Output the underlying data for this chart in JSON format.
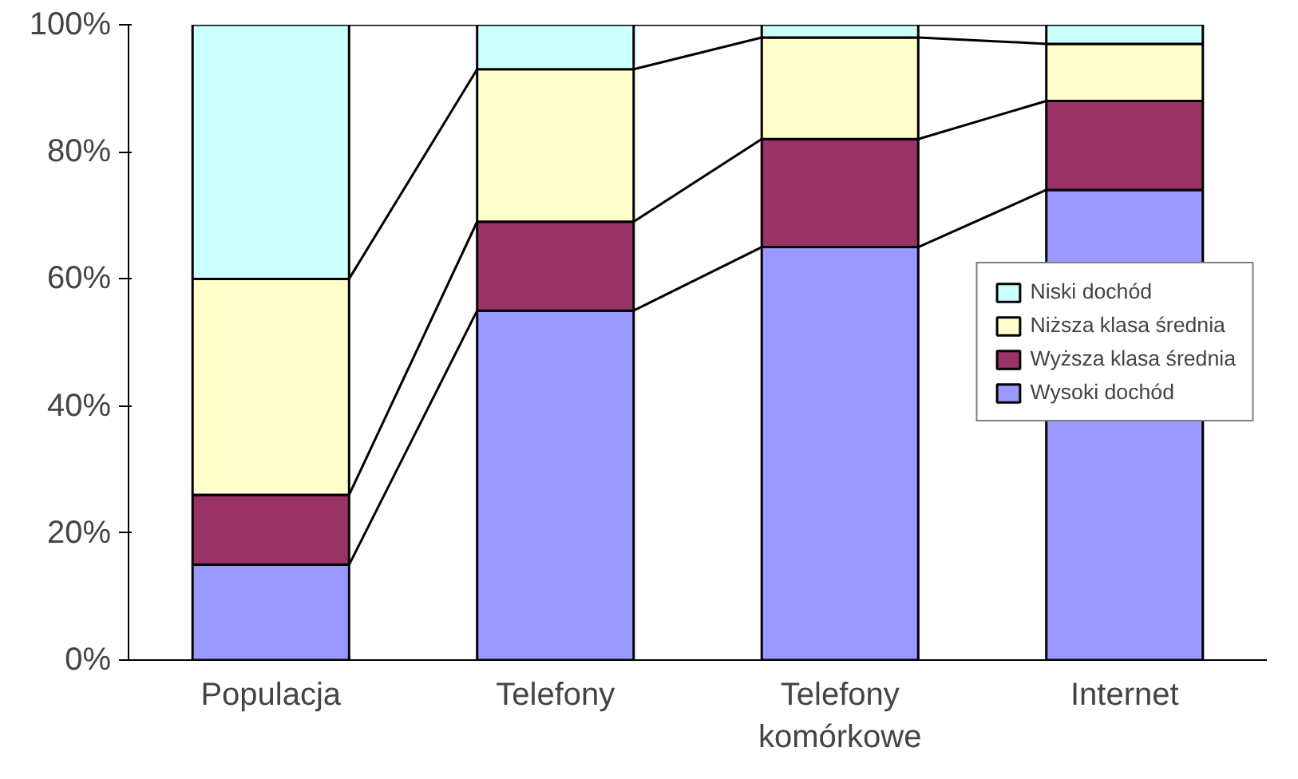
{
  "chart_data": {
    "type": "bar",
    "stacked": true,
    "categories": [
      "Populacja",
      "Telefony",
      "Telefony komórkowe",
      "Internet"
    ],
    "series": [
      {
        "name": "Wysoki dochód",
        "color": "#9999ff",
        "values": [
          15,
          55,
          65,
          74
        ]
      },
      {
        "name": "Wyższa klasa średnia",
        "color": "#993366",
        "values": [
          11,
          14,
          17,
          14
        ]
      },
      {
        "name": "Niższa klasa średnia",
        "color": "#ffffcc",
        "values": [
          34,
          24,
          16,
          9
        ]
      },
      {
        "name": "Niski dochód",
        "color": "#ccffff",
        "values": [
          40,
          7,
          2,
          3
        ]
      }
    ],
    "ylim": [
      0,
      100
    ],
    "yticks": [
      {
        "value": 0,
        "label": "0%"
      },
      {
        "value": 20,
        "label": "20%"
      },
      {
        "value": 40,
        "label": "40%"
      },
      {
        "value": 60,
        "label": "60%"
      },
      {
        "value": 80,
        "label": "80%"
      },
      {
        "value": 100,
        "label": "100%"
      }
    ],
    "grid": false,
    "legend": "right"
  }
}
